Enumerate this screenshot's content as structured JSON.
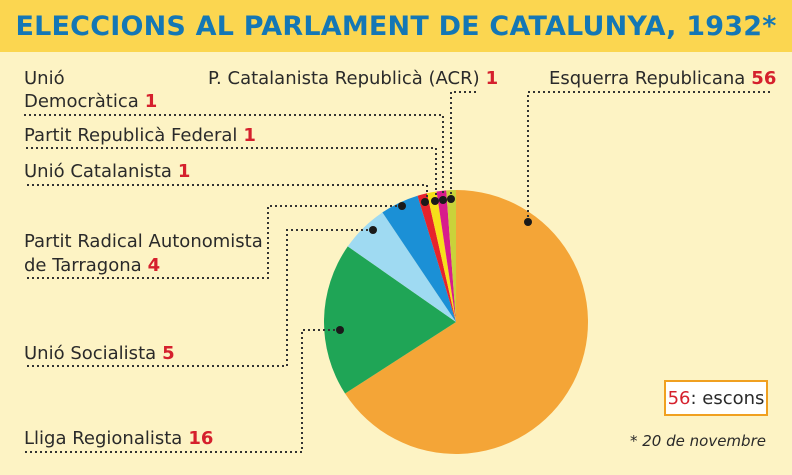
{
  "header": {
    "title": "ELECCIONS AL PARLAMENT DE CATALUNYA, 1932*"
  },
  "chart_data": {
    "type": "pie",
    "title": "ELECCIONS AL PARLAMENT DE CATALUNYA, 1932*",
    "slices": [
      {
        "name": "Esquerra Republicana",
        "value": 56,
        "color": "#f4a537"
      },
      {
        "name": "Lliga Regionalista",
        "value": 16,
        "color": "#1fa556"
      },
      {
        "name": "Unió Socialista",
        "value": 5,
        "color": "#9fdaf2"
      },
      {
        "name": "Partit Radical Autonomista de Tarragona",
        "value": 4,
        "color": "#1b90d6"
      },
      {
        "name": "Unió Catalanista",
        "value": 1,
        "color": "#e6232c"
      },
      {
        "name": "Partit Republicà Federal",
        "value": 1,
        "color": "#f6e01a"
      },
      {
        "name": "Unió Democràtica",
        "value": 1,
        "color": "#d81c8c"
      },
      {
        "name": "P. Catalanista Republicà (ACR)",
        "value": 1,
        "color": "#c9d23a"
      }
    ]
  },
  "labels": {
    "esquerra": {
      "text": "Esquerra Republicana",
      "value": "56"
    },
    "acr": {
      "text": "P. Catalanista Republicà (ACR)",
      "value": "1"
    },
    "unio_dem_1": "Unió",
    "unio_dem_2": "Democràtica",
    "unio_dem_value": "1",
    "federal": {
      "text": "Partit Republicà Federal",
      "value": "1"
    },
    "catalanista": {
      "text": "Unió Catalanista",
      "value": "1"
    },
    "radical_1": "Partit Radical Autonomista",
    "radical_2": "de Tarragona",
    "radical_value": "4",
    "socialista": {
      "text": "Unió Socialista",
      "value": "5"
    },
    "lliga": {
      "text": "Lliga Regionalista",
      "value": "16"
    }
  },
  "legend": {
    "number": "56",
    "text": ": escons"
  },
  "footnote": "* 20 de novembre"
}
